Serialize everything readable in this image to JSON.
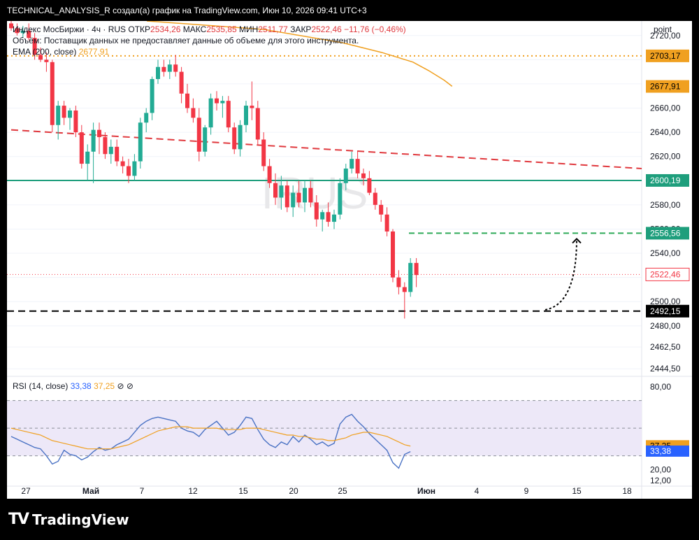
{
  "header": {
    "text": "TECHNICAL_ANALYSIS_R создал(а) график на TradingView.com, Июн 10, 2026 09:41 UTC+3"
  },
  "legend": {
    "symbol": "Индекс МосБиржи · 4ч · RUS",
    "open_label": "ОТКР",
    "open": "2534,26",
    "high_label": "МАКС",
    "high": "2535,85",
    "low_label": "МИН",
    "low": "2511,77",
    "close_label": "ЗАКР",
    "close": "2522,46",
    "change": "−11,76 (−0,46%)",
    "volume_note": "Объём: Поставщик данных не предоставляет данные об объеме для этого инструмента.",
    "ema_label": "EMA (200, close)",
    "ema_value": "2677,91"
  },
  "watermark": "IRUS",
  "rsi_legend": {
    "label": "RSI (14, close)",
    "value": "33,38",
    "ma_value": "37,25"
  },
  "footer": {
    "brand": "TradingView"
  },
  "colors": {
    "up": "#22ab94",
    "down": "#f23645",
    "ema": "#f0a020",
    "rsi": "#4a72c4",
    "support_green": "#1e9e7c",
    "trend_red": "#e0393e",
    "target_green": "#2eaa58",
    "black": "#000000"
  },
  "chart_data": {
    "type": "candlestick",
    "price_axis_label": "point",
    "y_ticks": [
      2720,
      2700,
      2680,
      2660,
      2640,
      2620,
      2600,
      2580,
      2560,
      2540,
      2520,
      2500,
      2480,
      2462.5,
      2444.5
    ],
    "y_tick_labels": [
      "2720,00",
      "",
      "",
      "2660,00",
      "2640,00",
      "2620,00",
      "",
      "2580,00",
      "2560,00",
      "2540,00",
      "",
      "2500,00",
      "2480,00",
      "2462,50",
      "2444,50"
    ],
    "price_tags": [
      {
        "label": "2703,17",
        "value": 2703.17,
        "style": "orange-outline"
      },
      {
        "label": "2677,91",
        "value": 2677.91,
        "style": "orange"
      },
      {
        "label": "2600,19",
        "value": 2600.19,
        "style": "green"
      },
      {
        "label": "2556,56",
        "value": 2556.56,
        "style": "green"
      },
      {
        "label": "2522,46",
        "value": 2522.46,
        "style": "red-outline"
      },
      {
        "label": "2492,15",
        "value": 2492.15,
        "style": "black"
      }
    ],
    "x_tick_labels": [
      "27",
      "Май",
      "7",
      "12",
      "15",
      "20",
      "25",
      "Июн",
      "4",
      "9",
      "15",
      "18"
    ],
    "ema": [
      [
        2732,
        0
      ],
      [
        2725,
        0.3
      ],
      [
        2714,
        0.5
      ],
      [
        2706,
        0.6
      ],
      [
        2698,
        0.68
      ],
      [
        2691,
        0.72
      ],
      [
        2683,
        0.76
      ],
      [
        2678,
        0.78
      ]
    ],
    "ohlc": [
      [
        2730,
        2732,
        2724,
        2726
      ],
      [
        2726,
        2730,
        2720,
        2722
      ],
      [
        2722,
        2728,
        2718,
        2724
      ],
      [
        2724,
        2730,
        2716,
        2718
      ],
      [
        2718,
        2722,
        2700,
        2704
      ],
      [
        2704,
        2710,
        2698,
        2700
      ],
      [
        2700,
        2706,
        2690,
        2698
      ],
      [
        2698,
        2700,
        2640,
        2646
      ],
      [
        2646,
        2666,
        2634,
        2662
      ],
      [
        2662,
        2666,
        2646,
        2652
      ],
      [
        2652,
        2660,
        2642,
        2658
      ],
      [
        2658,
        2662,
        2636,
        2640
      ],
      [
        2640,
        2646,
        2610,
        2614
      ],
      [
        2614,
        2630,
        2600,
        2624
      ],
      [
        2624,
        2648,
        2598,
        2642
      ],
      [
        2642,
        2648,
        2622,
        2636
      ],
      [
        2636,
        2640,
        2618,
        2622
      ],
      [
        2622,
        2634,
        2614,
        2628
      ],
      [
        2628,
        2634,
        2612,
        2616
      ],
      [
        2616,
        2620,
        2606,
        2612
      ],
      [
        2612,
        2618,
        2598,
        2604
      ],
      [
        2604,
        2622,
        2600,
        2616
      ],
      [
        2616,
        2652,
        2610,
        2648
      ],
      [
        2648,
        2660,
        2640,
        2656
      ],
      [
        2656,
        2686,
        2650,
        2684
      ],
      [
        2684,
        2700,
        2680,
        2694
      ],
      [
        2694,
        2700,
        2686,
        2690
      ],
      [
        2690,
        2700,
        2684,
        2696
      ],
      [
        2696,
        2704,
        2686,
        2690
      ],
      [
        2690,
        2694,
        2664,
        2672
      ],
      [
        2672,
        2680,
        2656,
        2660
      ],
      [
        2660,
        2668,
        2648,
        2652
      ],
      [
        2652,
        2660,
        2616,
        2624
      ],
      [
        2624,
        2646,
        2620,
        2644
      ],
      [
        2644,
        2672,
        2638,
        2668
      ],
      [
        2668,
        2674,
        2658,
        2664
      ],
      [
        2664,
        2670,
        2652,
        2666
      ],
      [
        2666,
        2670,
        2640,
        2644
      ],
      [
        2644,
        2648,
        2622,
        2626
      ],
      [
        2626,
        2650,
        2620,
        2646
      ],
      [
        2646,
        2666,
        2640,
        2662
      ],
      [
        2662,
        2682,
        2650,
        2660
      ],
      [
        2660,
        2666,
        2630,
        2634
      ],
      [
        2634,
        2640,
        2608,
        2612
      ],
      [
        2612,
        2618,
        2594,
        2598
      ],
      [
        2598,
        2606,
        2580,
        2586
      ],
      [
        2586,
        2604,
        2576,
        2596
      ],
      [
        2596,
        2600,
        2574,
        2578
      ],
      [
        2578,
        2596,
        2570,
        2590
      ],
      [
        2590,
        2600,
        2578,
        2582
      ],
      [
        2582,
        2600,
        2574,
        2594
      ],
      [
        2594,
        2600,
        2578,
        2582
      ],
      [
        2582,
        2588,
        2562,
        2568
      ],
      [
        2568,
        2576,
        2558,
        2574
      ],
      [
        2574,
        2582,
        2562,
        2566
      ],
      [
        2566,
        2576,
        2560,
        2572
      ],
      [
        2572,
        2602,
        2568,
        2598
      ],
      [
        2598,
        2614,
        2592,
        2610
      ],
      [
        2610,
        2624,
        2606,
        2618
      ],
      [
        2618,
        2624,
        2602,
        2606
      ],
      [
        2606,
        2610,
        2596,
        2602
      ],
      [
        2602,
        2608,
        2588,
        2590
      ],
      [
        2590,
        2594,
        2576,
        2580
      ],
      [
        2580,
        2584,
        2566,
        2572
      ],
      [
        2572,
        2578,
        2554,
        2558
      ],
      [
        2558,
        2560,
        2516,
        2520
      ],
      [
        2520,
        2526,
        2506,
        2512
      ],
      [
        2512,
        2516,
        2486,
        2508
      ],
      [
        2508,
        2536,
        2504,
        2532
      ],
      [
        2532,
        2536,
        2512,
        2522
      ]
    ],
    "rsi": {
      "range": [
        0,
        100
      ],
      "tick_labels": [
        "80,00",
        "20,00",
        "12,00"
      ],
      "overbought": 70,
      "oversold": 30,
      "mid": 50,
      "rsi_values": [
        44,
        42,
        40,
        38,
        36,
        35,
        30,
        24,
        26,
        34,
        31,
        30,
        27,
        29,
        33,
        36,
        34,
        35,
        38,
        40,
        42,
        47,
        52,
        55,
        57,
        58,
        57,
        56,
        55,
        50,
        48,
        47,
        44,
        49,
        52,
        55,
        50,
        45,
        47,
        52,
        58,
        57,
        49,
        42,
        38,
        36,
        40,
        38,
        44,
        40,
        45,
        42,
        38,
        40,
        37,
        39,
        53,
        58,
        60,
        55,
        51,
        46,
        42,
        38,
        34,
        25,
        21,
        31,
        33
      ],
      "ma_values": [
        50,
        49,
        48,
        47,
        46,
        45,
        43,
        41,
        40,
        39,
        38,
        37,
        36,
        35,
        35,
        35,
        35,
        35,
        36,
        37,
        38,
        40,
        42,
        44,
        46,
        48,
        49,
        50,
        51,
        51,
        51,
        50,
        50,
        50,
        50,
        50,
        49,
        49,
        49,
        49,
        50,
        50,
        50,
        49,
        48,
        47,
        46,
        45,
        45,
        44,
        44,
        43,
        42,
        42,
        41,
        41,
        42,
        43,
        45,
        46,
        47,
        47,
        46,
        45,
        44,
        42,
        40,
        38,
        37
      ]
    },
    "annotations": {
      "trend_line": {
        "from": 2642,
        "to": 2610,
        "style": "red-dashed"
      },
      "support": {
        "value": 2600.19,
        "style": "green-solid"
      },
      "target": {
        "value": 2556.56,
        "style": "green-dashed"
      },
      "low_level": {
        "value": 2492.15,
        "style": "black-dashed"
      },
      "orange_level": {
        "value": 2703.17,
        "style": "orange-dotted"
      },
      "arrow": {
        "from": 2492.15,
        "to": 2556.56,
        "style": "black-dotted-curve"
      }
    }
  }
}
